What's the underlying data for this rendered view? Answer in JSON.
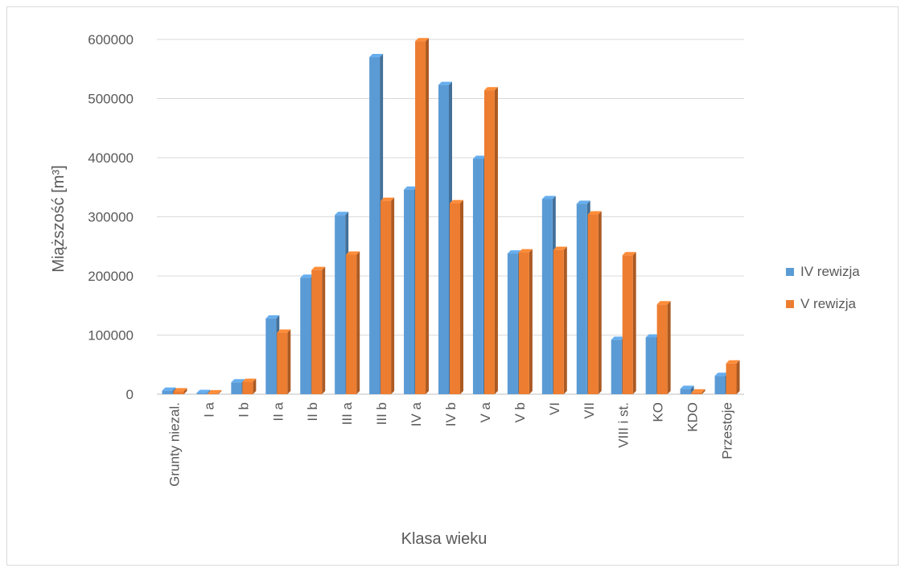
{
  "chart_data": {
    "type": "bar",
    "title": "",
    "xlabel": "Klasa wieku",
    "ylabel": "Miąższość [m³]",
    "ylim": [
      0,
      600000
    ],
    "yticks": [
      "0",
      "100000",
      "200000",
      "300000",
      "400000",
      "500000",
      "600000"
    ],
    "grid": true,
    "legend_position": "right",
    "categories": [
      "Grunty niezal.",
      "I a",
      "I b",
      "II a",
      "II b",
      "III a",
      "III b",
      "IV a",
      "IV b",
      "V a",
      "V b",
      "VI",
      "VII",
      "VIII i st.",
      "KO",
      "KDO",
      "Przestoje"
    ],
    "series": [
      {
        "name": "IV rewizja",
        "color": "#5b9bd5",
        "values": [
          6000,
          2000,
          20000,
          128000,
          197000,
          303000,
          570000,
          346000,
          523000,
          398000,
          238000,
          330000,
          322000,
          92000,
          96000,
          9000,
          31000
        ]
      },
      {
        "name": "V rewizja",
        "color": "#ed7d31",
        "values": [
          5000,
          1500,
          21000,
          104000,
          210000,
          236000,
          327000,
          597000,
          323000,
          514000,
          240000,
          244000,
          304000,
          235000,
          152000,
          3000,
          52000
        ]
      }
    ]
  }
}
